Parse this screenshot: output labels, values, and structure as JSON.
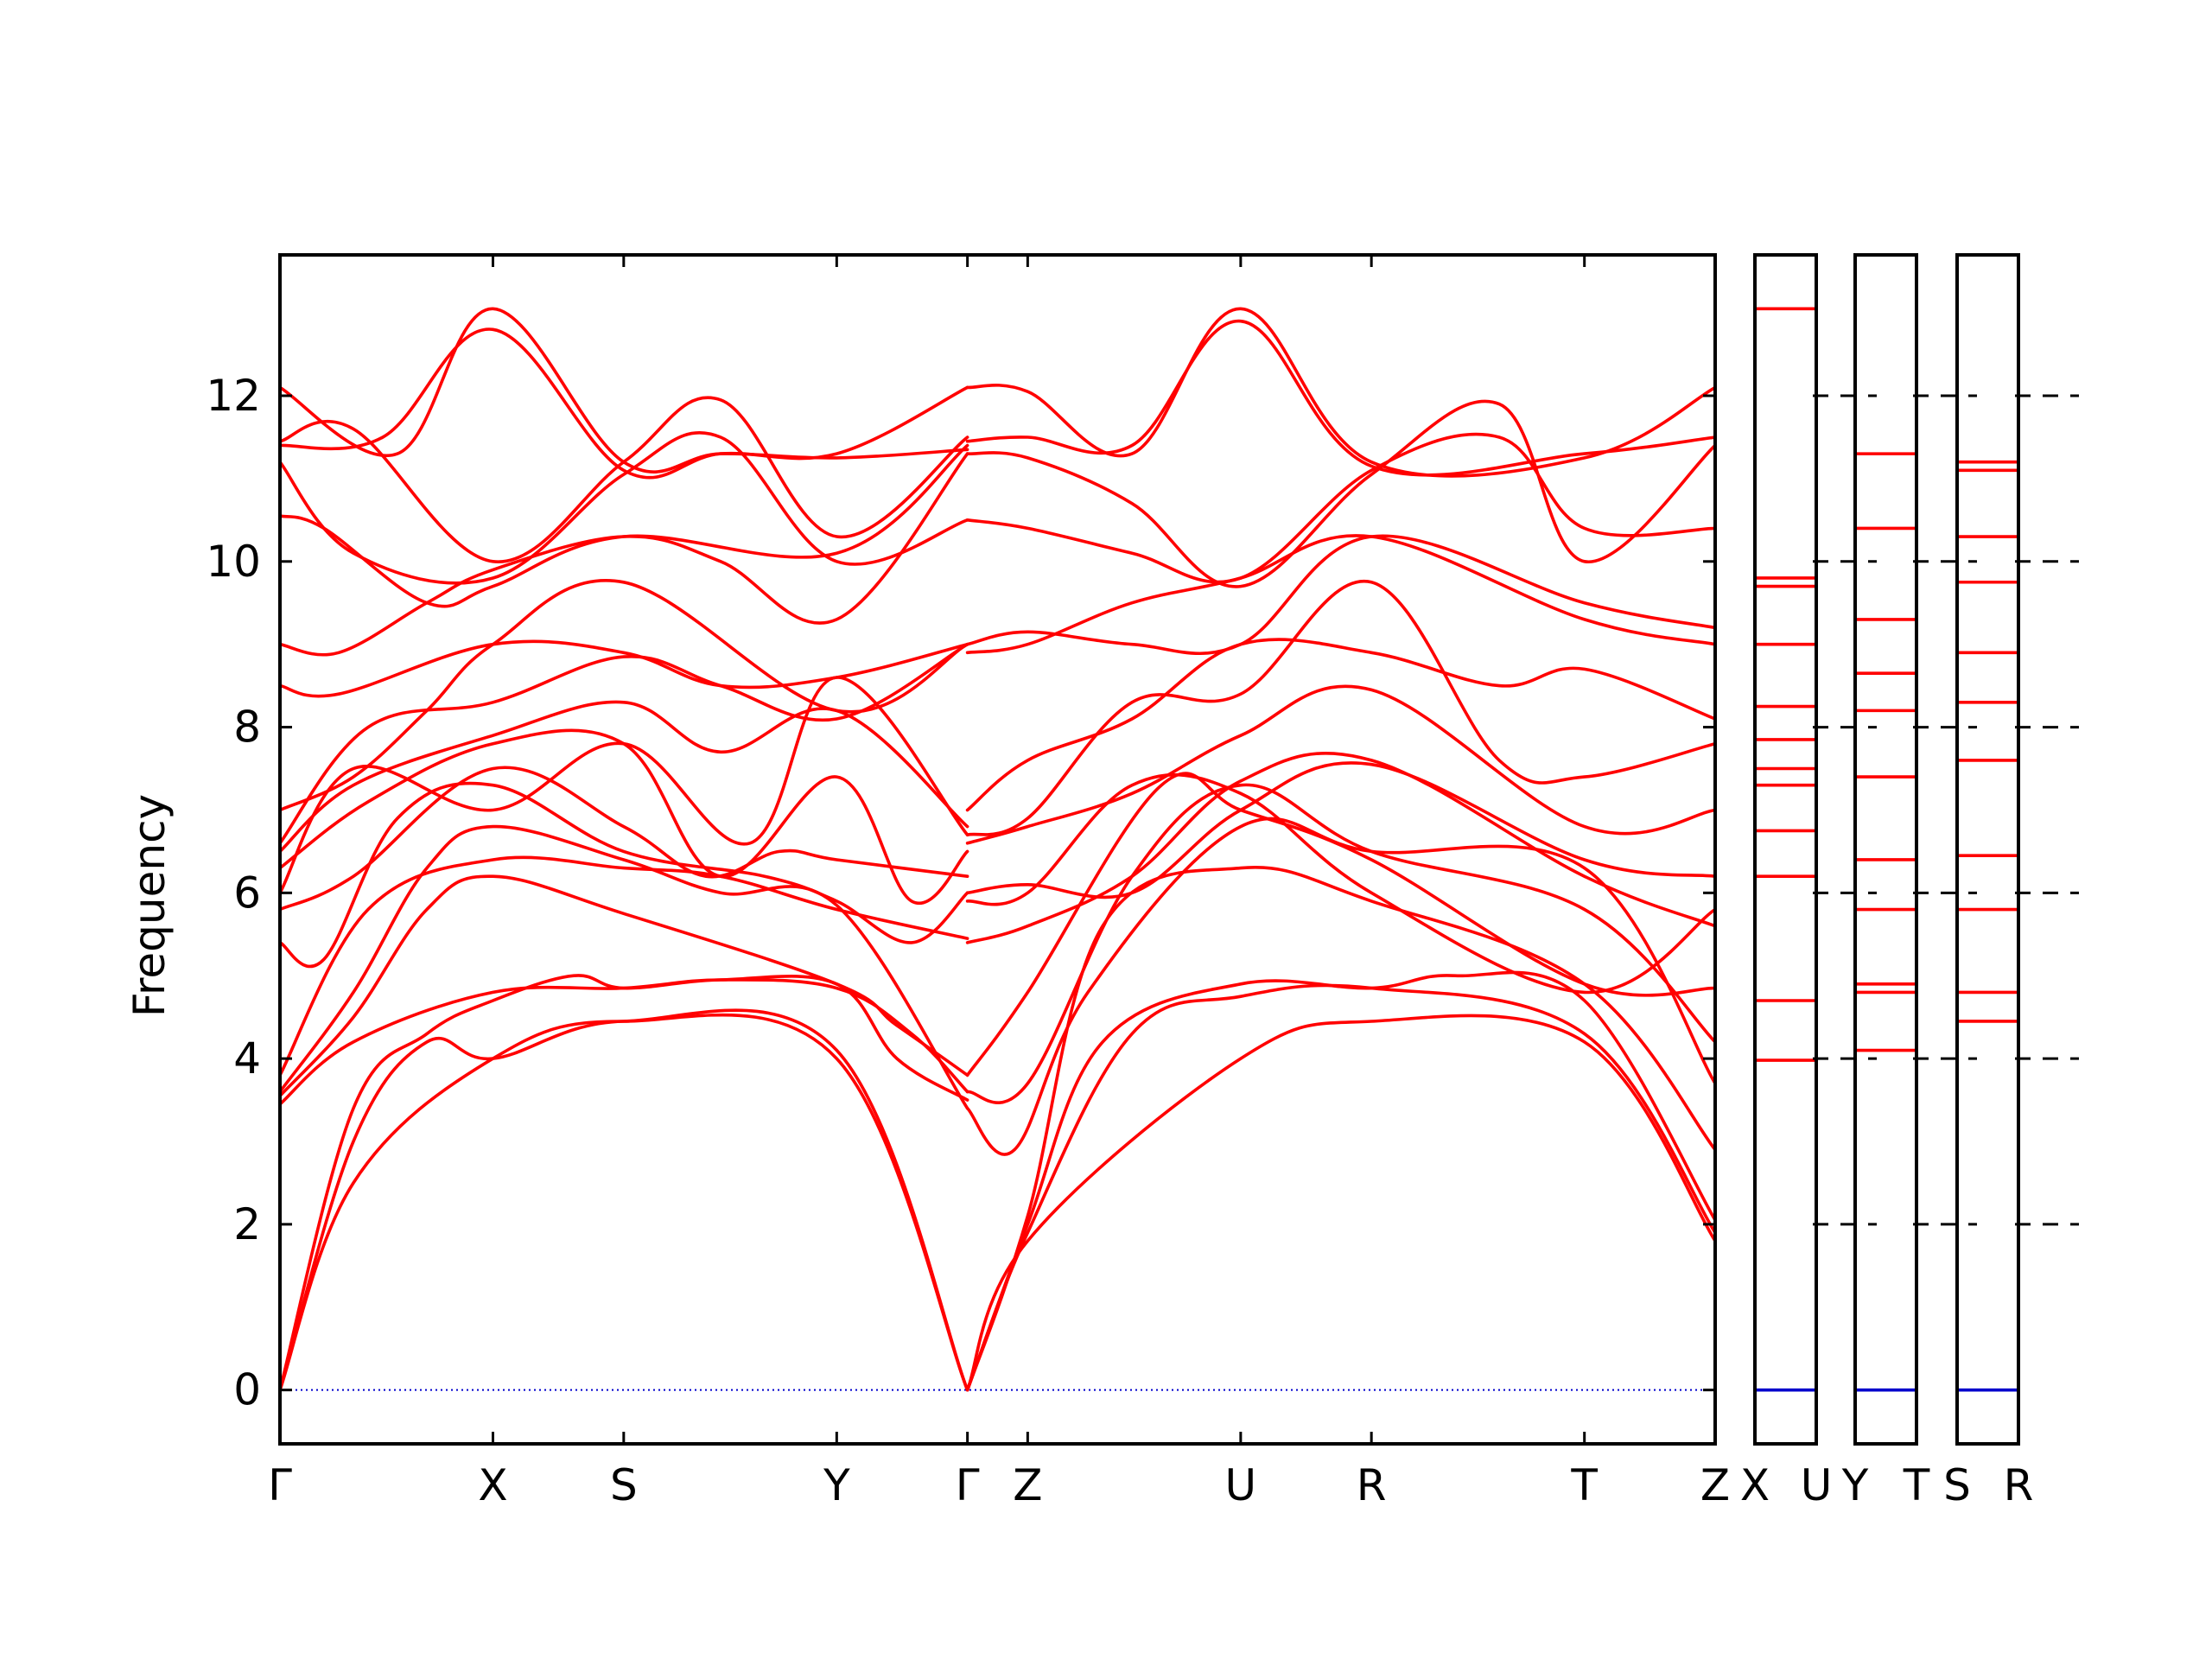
{
  "chart_data": {
    "type": "line",
    "title": "",
    "ylabel": "Frequency",
    "xlabel": "",
    "ylim": [
      -0.65,
      13.7
    ],
    "yticks": [
      0,
      2,
      4,
      6,
      8,
      10,
      12
    ],
    "grid": false,
    "colors": {
      "band": "#ff0000",
      "zero": "#0000cc",
      "frame": "#000000"
    },
    "panels": [
      {
        "path_labels": [
          "Γ",
          "X",
          "S",
          "Y",
          "Γ",
          "Z",
          "U",
          "R",
          "T",
          "Z"
        ],
        "label_positions": [
          0,
          1.45,
          2.34,
          3.79,
          4.68,
          5.09,
          6.54,
          7.43,
          8.88,
          9.77
        ],
        "bands": [
          {
            "x": [
              0,
              0.5,
              1.45,
              2.34,
              3.79,
              4.68
            ],
            "y": [
              0,
              2.5,
              4.0,
              4.45,
              4.0,
              0
            ]
          },
          {
            "x": [
              0,
              0.5,
              1.0,
              1.45,
              2.34,
              3.79,
              4.68
            ],
            "y": [
              0,
              3.0,
              4.2,
              4.0,
              4.45,
              4.1,
              0
            ]
          },
          {
            "x": [
              0,
              0.5,
              1.0,
              1.45,
              2.0,
              2.34,
              3.0,
              3.79,
              4.2,
              4.68
            ],
            "y": [
              0,
              3.4,
              4.3,
              4.7,
              5.0,
              4.85,
              4.95,
              4.9,
              4.0,
              3.5
            ]
          },
          {
            "x": [
              0,
              0.5,
              1.45,
              2.34,
              3.0,
              3.79,
              4.3,
              4.68
            ],
            "y": [
              3.45,
              4.2,
              4.8,
              4.85,
              4.95,
              4.85,
              4.3,
              3.6
            ]
          },
          {
            "x": [
              0,
              0.5,
              1.0,
              1.45,
              2.34,
              3.79,
              4.2,
              4.68
            ],
            "y": [
              3.55,
              4.5,
              5.8,
              6.2,
              5.75,
              4.9,
              4.4,
              3.8
            ]
          },
          {
            "x": [
              0,
              0.5,
              1.0,
              1.45,
              2.34,
              3.0,
              3.79,
              4.68
            ],
            "y": [
              3.6,
              4.8,
              6.3,
              6.8,
              6.4,
              6.0,
              5.85,
              3.4
            ]
          },
          {
            "x": [
              0,
              0.6,
              1.45,
              2.34,
              3.0,
              3.79,
              4.68
            ],
            "y": [
              3.8,
              5.8,
              6.4,
              6.3,
              6.2,
              5.8,
              5.45
            ]
          },
          {
            "x": [
              0,
              0.3,
              0.8,
              1.45,
              2.34,
              3.3,
              3.79,
              4.3,
              4.68
            ],
            "y": [
              5.4,
              5.2,
              6.9,
              7.3,
              6.5,
              6.2,
              5.9,
              5.4,
              6.0
            ]
          },
          {
            "x": [
              0,
              0.5,
              1.45,
              2.34,
              2.9,
              3.4,
              3.79,
              4.68
            ],
            "y": [
              5.8,
              6.2,
              7.5,
              6.8,
              6.2,
              6.5,
              6.4,
              6.2
            ]
          },
          {
            "x": [
              0,
              0.5,
              1.45,
              2.34,
              3.2,
              3.79,
              4.68
            ],
            "y": [
              6.0,
              7.5,
              7.0,
              7.8,
              6.6,
              8.6,
              6.7
            ]
          },
          {
            "x": [
              0,
              0.6,
              1.45,
              2.34,
              3.0,
              3.79,
              4.3,
              4.68
            ],
            "y": [
              6.3,
              7.1,
              7.8,
              7.8,
              6.2,
              7.4,
              5.9,
              6.5
            ]
          },
          {
            "x": [
              0,
              0.5,
              1.45,
              2.34,
              3.0,
              3.79,
              4.68
            ],
            "y": [
              6.5,
              7.3,
              7.9,
              8.3,
              7.7,
              8.2,
              6.8
            ]
          },
          {
            "x": [
              0,
              0.6,
              1.45,
              2.34,
              3.0,
              3.79,
              4.68
            ],
            "y": [
              6.6,
              8.0,
              8.3,
              8.85,
              8.5,
              8.1,
              9.0
            ]
          },
          {
            "x": [
              0,
              0.5,
              1.0,
              1.45,
              2.34,
              3.79,
              4.68
            ],
            "y": [
              7.0,
              7.4,
              8.2,
              9.0,
              9.75,
              8.2,
              9.0
            ]
          },
          {
            "x": [
              0,
              0.4,
              1.45,
              2.34,
              3.0,
              3.79,
              4.68
            ],
            "y": [
              8.5,
              8.4,
              9.0,
              8.9,
              8.5,
              8.6,
              9.0
            ]
          },
          {
            "x": [
              0,
              0.4,
              1.0,
              1.45,
              2.34,
              3.0,
              3.79,
              4.68
            ],
            "y": [
              9.0,
              8.9,
              9.5,
              9.9,
              10.3,
              10.0,
              9.3,
              11.3
            ]
          },
          {
            "x": [
              0,
              0.3,
              1.0,
              1.45,
              2.34,
              3.79,
              4.68
            ],
            "y": [
              10.55,
              10.4,
              9.5,
              9.7,
              10.3,
              10.1,
              11.4
            ]
          },
          {
            "x": [
              0,
              0.5,
              1.45,
              2.34,
              3.0,
              3.79,
              4.68
            ],
            "y": [
              11.2,
              10.1,
              9.8,
              11.05,
              11.5,
              10.0,
              10.5
            ]
          },
          {
            "x": [
              0,
              0.5,
              1.45,
              2.34,
              3.0,
              3.79,
              4.68
            ],
            "y": [
              11.45,
              11.6,
              10.0,
              11.2,
              11.95,
              10.3,
              11.5
            ]
          },
          {
            "x": [
              0,
              0.7,
              1.45,
              2.34,
              3.0,
              3.79,
              4.68
            ],
            "y": [
              11.4,
              11.5,
              12.8,
              11.1,
              11.3,
              11.3,
              12.1
            ]
          },
          {
            "x": [
              0,
              0.8,
              1.45,
              2.34,
              3.0,
              3.79,
              4.68
            ],
            "y": [
              12.1,
              11.3,
              13.05,
              11.2,
              11.3,
              11.25,
              11.35
            ]
          },
          {
            "x": [
              4.68,
              5.09,
              6.54,
              7.43,
              8.88,
              9.77
            ],
            "y": [
              0,
              1.8,
              4.0,
              4.45,
              4.2,
              1.8
            ]
          },
          {
            "x": [
              4.68,
              5.09,
              5.8,
              6.54,
              7.43,
              8.88,
              9.77
            ],
            "y": [
              0,
              1.9,
              4.3,
              4.75,
              4.85,
              4.3,
              1.9
            ]
          },
          {
            "x": [
              4.68,
              5.09,
              5.6,
              6.54,
              7.43,
              8.0,
              8.88,
              9.77
            ],
            "y": [
              0,
              2.0,
              4.2,
              4.9,
              4.85,
              5.0,
              4.7,
              2.05
            ]
          },
          {
            "x": [
              4.68,
              5.09,
              5.6,
              6.54,
              7.43,
              8.88,
              9.77
            ],
            "y": [
              0,
              2.1,
              5.6,
              6.3,
              5.9,
              4.9,
              2.9
            ]
          },
          {
            "x": [
              4.68,
              5.0,
              5.5,
              6.54,
              7.43,
              8.88,
              9.77
            ],
            "y": [
              3.4,
              2.9,
              4.8,
              6.8,
              6.5,
              6.3,
              3.7
            ]
          },
          {
            "x": [
              4.68,
              5.09,
              5.8,
              6.54,
              7.43,
              8.88,
              9.77
            ],
            "y": [
              3.6,
              3.7,
              6.2,
              7.3,
              6.5,
              5.8,
              4.2
            ]
          },
          {
            "x": [
              4.68,
              5.09,
              6.0,
              6.54,
              7.43,
              8.88,
              9.77
            ],
            "y": [
              3.8,
              4.8,
              7.3,
              7.0,
              6.4,
              4.9,
              4.85
            ]
          },
          {
            "x": [
              4.68,
              5.09,
              5.8,
              6.54,
              7.43,
              8.88,
              9.77
            ],
            "y": [
              5.4,
              5.6,
              6.2,
              7.35,
              7.6,
              6.2,
              5.6
            ]
          },
          {
            "x": [
              4.68,
              5.09,
              5.8,
              6.54,
              7.43,
              8.88,
              9.77
            ],
            "y": [
              5.9,
              6.0,
              7.3,
              7.2,
              6.0,
              4.8,
              5.8
            ]
          },
          {
            "x": [
              4.68,
              5.09,
              5.8,
              6.54,
              7.43,
              8.88,
              9.77
            ],
            "y": [
              6.0,
              6.1,
              6.0,
              7.0,
              7.55,
              6.4,
              6.2
            ]
          },
          {
            "x": [
              4.68,
              5.09,
              5.8,
              6.54,
              7.43,
              8.88,
              9.77
            ],
            "y": [
              6.6,
              6.8,
              7.2,
              7.9,
              8.45,
              6.8,
              7.0
            ]
          },
          {
            "x": [
              4.68,
              5.09,
              5.8,
              6.54,
              7.43,
              8.3,
              8.88,
              9.77
            ],
            "y": [
              6.7,
              6.9,
              8.3,
              8.4,
              9.75,
              7.6,
              7.4,
              7.8
            ]
          },
          {
            "x": [
              4.68,
              5.09,
              5.8,
              6.54,
              7.43,
              8.3,
              8.88,
              9.77
            ],
            "y": [
              7.0,
              7.6,
              8.1,
              9.0,
              8.9,
              8.5,
              8.7,
              8.1
            ]
          },
          {
            "x": [
              4.68,
              5.09,
              5.8,
              6.54,
              7.43,
              8.88,
              9.77
            ],
            "y": [
              8.9,
              9.0,
              9.5,
              9.8,
              10.3,
              9.3,
              9.0
            ]
          },
          {
            "x": [
              4.68,
              5.09,
              5.8,
              6.54,
              7.43,
              8.88,
              9.77
            ],
            "y": [
              9.0,
              9.15,
              9.0,
              9.0,
              10.3,
              9.5,
              9.2
            ]
          },
          {
            "x": [
              4.68,
              5.09,
              5.8,
              6.54,
              7.43,
              8.3,
              8.88,
              9.77
            ],
            "y": [
              10.5,
              10.4,
              10.1,
              9.8,
              11.1,
              11.5,
              10.4,
              10.4
            ]
          },
          {
            "x": [
              4.68,
              5.09,
              5.8,
              6.54,
              7.43,
              8.3,
              8.88,
              9.77
            ],
            "y": [
              11.3,
              11.25,
              10.7,
              9.7,
              11.05,
              11.9,
              10.0,
              11.4
            ]
          },
          {
            "x": [
              4.68,
              5.09,
              5.8,
              6.54,
              7.43,
              8.88,
              9.77
            ],
            "y": [
              11.45,
              11.5,
              11.4,
              12.9,
              11.15,
              11.3,
              11.5
            ]
          },
          {
            "x": [
              4.68,
              5.09,
              5.8,
              6.54,
              7.43,
              8.88,
              9.77
            ],
            "y": [
              12.1,
              12.05,
              11.3,
              13.05,
              11.2,
              11.25,
              12.1
            ]
          }
        ]
      },
      {
        "path_labels": [
          "X",
          "U"
        ],
        "label_positions": [
          0,
          1
        ],
        "levels": [
          0,
          3.98,
          4.7,
          6.2,
          6.75,
          7.3,
          7.5,
          7.85,
          8.25,
          9.0,
          9.7,
          9.8,
          13.05
        ]
      },
      {
        "path_labels": [
          "Y",
          "T"
        ],
        "label_positions": [
          0,
          1
        ],
        "levels": [
          0,
          4.1,
          4.8,
          4.9,
          5.8,
          6.4,
          7.4,
          8.2,
          8.65,
          9.3,
          10.4,
          11.3
        ]
      },
      {
        "path_labels": [
          "S",
          "R"
        ],
        "label_positions": [
          0,
          1
        ],
        "levels": [
          0,
          4.45,
          4.8,
          5.8,
          6.45,
          7.6,
          8.3,
          8.9,
          9.75,
          10.3,
          11.1,
          11.2
        ]
      }
    ]
  }
}
